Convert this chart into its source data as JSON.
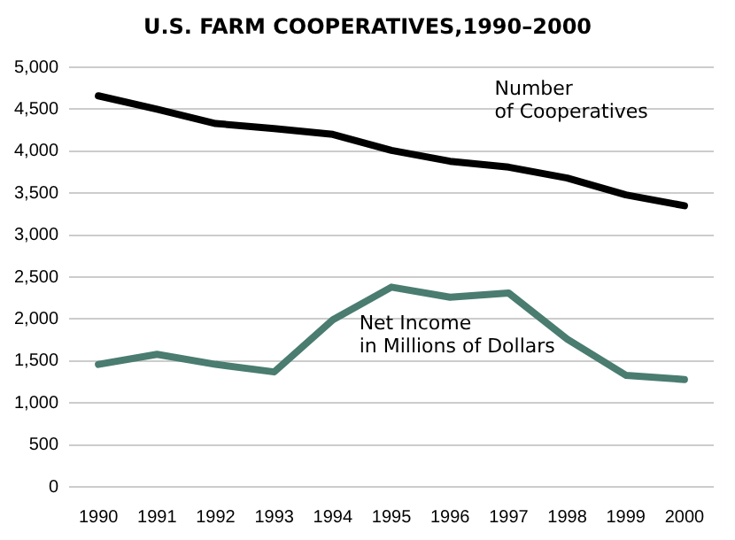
{
  "chart_data": {
    "type": "line",
    "title": "U.S. FARM COOPERATIVES,1990–2000",
    "categories": [
      "1990",
      "1991",
      "1992",
      "1993",
      "1994",
      "1995",
      "1996",
      "1997",
      "1998",
      "1999",
      "2000"
    ],
    "series": [
      {
        "name": "Number\nof Cooperatives",
        "color": "#000000",
        "values": [
          4660,
          4500,
          4330,
          4270,
          4200,
          4010,
          3880,
          3810,
          3680,
          3480,
          3350
        ]
      },
      {
        "name": "Net Income\nin Millions of Dollars",
        "color": "#4a7c70",
        "values": [
          1460,
          1580,
          1460,
          1370,
          1990,
          2380,
          2260,
          2310,
          1760,
          1330,
          1280
        ]
      }
    ],
    "ylim": [
      0,
      5000
    ],
    "yticks": [
      0,
      500,
      {
        "value": 1000,
        "label": "1,000"
      },
      {
        "value": 1500,
        "label": "1,500"
      },
      {
        "value": 2000,
        "label": "2,000"
      },
      {
        "value": 2500,
        "label": "2,500"
      },
      {
        "value": 3000,
        "label": "3,000"
      },
      {
        "value": 3500,
        "label": "3,500"
      },
      {
        "value": 4000,
        "label": "4,000"
      },
      {
        "value": 4500,
        "label": "4,500"
      },
      {
        "value": 5000,
        "label": "5,000"
      }
    ],
    "grid": "y",
    "legend": false,
    "marker": "none",
    "line_style": "solid"
  }
}
